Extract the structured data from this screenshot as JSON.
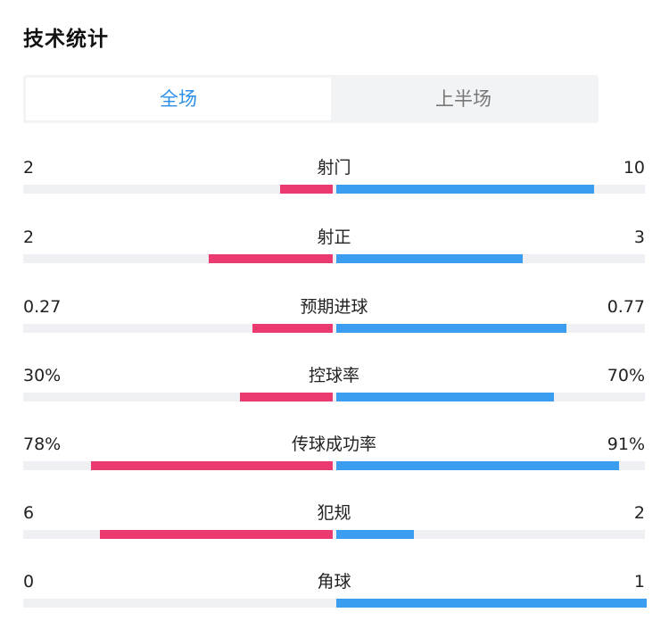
{
  "header": {
    "title": "技术统计"
  },
  "tabs": [
    {
      "label": "全场",
      "active": true
    },
    {
      "label": "上半场",
      "active": false
    }
  ],
  "colors": {
    "home": "#ea3a6f",
    "away": "#3a9df0",
    "track": "#eef0f3",
    "active_tab": "#2b8fe8"
  },
  "stats": [
    {
      "name": "射门",
      "home": "2",
      "away": "10",
      "home_share": 0.17,
      "away_share": 0.83
    },
    {
      "name": "射正",
      "home": "2",
      "away": "3",
      "home_share": 0.4,
      "away_share": 0.6
    },
    {
      "name": "预期进球",
      "home": "0.27",
      "away": "0.77",
      "home_share": 0.26,
      "away_share": 0.74
    },
    {
      "name": "控球率",
      "home": "30%",
      "away": "70%",
      "home_share": 0.3,
      "away_share": 0.7
    },
    {
      "name": "传球成功率",
      "home": "78%",
      "away": "91%",
      "home_share": 0.78,
      "away_share": 0.91
    },
    {
      "name": "犯规",
      "home": "6",
      "away": "2",
      "home_share": 0.75,
      "away_share": 0.25
    },
    {
      "name": "角球",
      "home": "0",
      "away": "1",
      "home_share": 0.0,
      "away_share": 1.0
    }
  ]
}
